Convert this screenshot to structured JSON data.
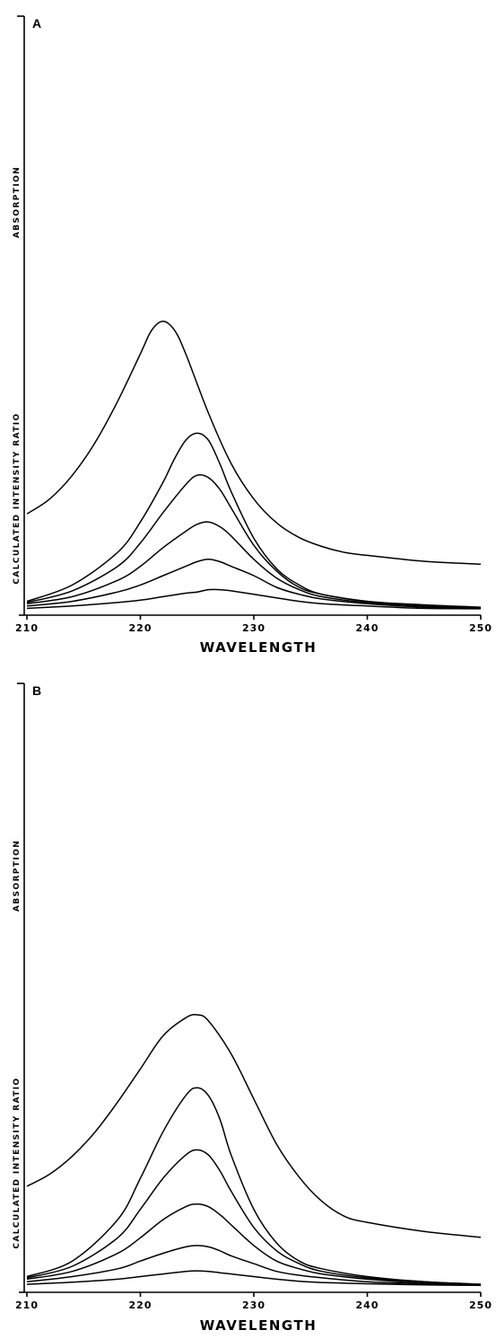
{
  "chart_data": [
    {
      "type": "line",
      "panel_label": "A",
      "xlabel": "WAVELENGTH",
      "ylabels": [
        "ABSORPTION",
        "CALCULATED INTENSITY RATIO"
      ],
      "xlim": [
        210,
        250
      ],
      "xticks": [
        210,
        220,
        230,
        240,
        250
      ],
      "xtick_labels": [
        "210",
        "220",
        "230",
        "240",
        "250"
      ],
      "series": [
        {
          "group": "absorption",
          "values": [
            [
              210,
              0.26
            ],
            [
              212,
              0.31
            ],
            [
              214,
              0.39
            ],
            [
              216,
              0.5
            ],
            [
              218,
              0.64
            ],
            [
              220,
              0.8
            ],
            [
              221,
              0.88
            ],
            [
              222,
              0.91
            ],
            [
              223,
              0.88
            ],
            [
              224,
              0.8
            ],
            [
              226,
              0.6
            ],
            [
              228,
              0.43
            ],
            [
              230,
              0.31
            ],
            [
              232,
              0.23
            ],
            [
              234,
              0.18
            ],
            [
              236,
              0.15
            ],
            [
              238,
              0.13
            ],
            [
              240,
              0.12
            ],
            [
              245,
              0.1
            ],
            [
              250,
              0.09
            ]
          ]
        },
        {
          "group": "intensity_ratio",
          "values": [
            [
              210,
              0.04
            ],
            [
              214,
              0.11
            ],
            [
              218,
              0.25
            ],
            [
              220,
              0.38
            ],
            [
              222,
              0.55
            ],
            [
              223,
              0.65
            ],
            [
              224,
              0.73
            ],
            [
              225,
              0.76
            ],
            [
              226,
              0.73
            ],
            [
              227,
              0.63
            ],
            [
              228,
              0.51
            ],
            [
              230,
              0.31
            ],
            [
              232,
              0.18
            ],
            [
              234,
              0.11
            ],
            [
              236,
              0.07
            ],
            [
              240,
              0.04
            ],
            [
              245,
              0.025
            ],
            [
              250,
              0.015
            ]
          ]
        },
        {
          "group": "intensity_ratio",
          "values": [
            [
              210,
              0.035
            ],
            [
              214,
              0.085
            ],
            [
              218,
              0.19
            ],
            [
              220,
              0.29
            ],
            [
              222,
              0.42
            ],
            [
              224,
              0.54
            ],
            [
              225,
              0.58
            ],
            [
              226,
              0.57
            ],
            [
              227,
              0.52
            ],
            [
              228,
              0.44
            ],
            [
              230,
              0.28
            ],
            [
              232,
              0.17
            ],
            [
              234,
              0.1
            ],
            [
              236,
              0.07
            ],
            [
              240,
              0.04
            ],
            [
              245,
              0.02
            ],
            [
              250,
              0.01
            ]
          ]
        },
        {
          "group": "intensity_ratio",
          "values": [
            [
              210,
              0.03
            ],
            [
              214,
              0.06
            ],
            [
              218,
              0.13
            ],
            [
              220,
              0.19
            ],
            [
              222,
              0.27
            ],
            [
              224,
              0.34
            ],
            [
              225,
              0.37
            ],
            [
              226,
              0.38
            ],
            [
              227,
              0.36
            ],
            [
              228,
              0.32
            ],
            [
              230,
              0.22
            ],
            [
              232,
              0.14
            ],
            [
              234,
              0.09
            ],
            [
              236,
              0.06
            ],
            [
              240,
              0.035
            ],
            [
              245,
              0.02
            ],
            [
              250,
              0.01
            ]
          ]
        },
        {
          "group": "intensity_ratio",
          "values": [
            [
              210,
              0.02
            ],
            [
              214,
              0.04
            ],
            [
              218,
              0.08
            ],
            [
              220,
              0.11
            ],
            [
              222,
              0.15
            ],
            [
              224,
              0.19
            ],
            [
              225,
              0.21
            ],
            [
              226,
              0.22
            ],
            [
              227,
              0.21
            ],
            [
              228,
              0.19
            ],
            [
              230,
              0.15
            ],
            [
              232,
              0.1
            ],
            [
              234,
              0.07
            ],
            [
              236,
              0.05
            ],
            [
              240,
              0.03
            ],
            [
              245,
              0.015
            ],
            [
              250,
              0.01
            ]
          ]
        },
        {
          "group": "intensity_ratio",
          "values": [
            [
              210,
              0.01
            ],
            [
              214,
              0.02
            ],
            [
              218,
              0.035
            ],
            [
              220,
              0.045
            ],
            [
              222,
              0.06
            ],
            [
              224,
              0.075
            ],
            [
              225,
              0.08
            ],
            [
              226,
              0.09
            ],
            [
              227,
              0.09
            ],
            [
              228,
              0.085
            ],
            [
              230,
              0.07
            ],
            [
              232,
              0.055
            ],
            [
              234,
              0.04
            ],
            [
              236,
              0.03
            ],
            [
              240,
              0.02
            ],
            [
              245,
              0.01
            ],
            [
              250,
              0.008
            ]
          ]
        }
      ]
    },
    {
      "type": "line",
      "panel_label": "B",
      "xlabel": "WAVELENGTH",
      "ylabels": [
        "ABSORPTION",
        "CALCULATED INTENSITY RATIO"
      ],
      "xlim": [
        210,
        250
      ],
      "xticks": [
        210,
        220,
        230,
        240,
        250
      ],
      "xtick_labels": [
        "210",
        "220",
        "230",
        "240",
        "250"
      ],
      "series": [
        {
          "group": "absorption",
          "values": [
            [
              210,
              0.26
            ],
            [
              212,
              0.3
            ],
            [
              214,
              0.36
            ],
            [
              216,
              0.44
            ],
            [
              218,
              0.54
            ],
            [
              220,
              0.65
            ],
            [
              222,
              0.76
            ],
            [
              224,
              0.82
            ],
            [
              225,
              0.83
            ],
            [
              226,
              0.81
            ],
            [
              228,
              0.7
            ],
            [
              230,
              0.55
            ],
            [
              232,
              0.4
            ],
            [
              234,
              0.29
            ],
            [
              236,
              0.21
            ],
            [
              238,
              0.16
            ],
            [
              240,
              0.14
            ],
            [
              245,
              0.11
            ],
            [
              250,
              0.09
            ]
          ]
        },
        {
          "group": "intensity_ratio",
          "values": [
            [
              210,
              0.04
            ],
            [
              214,
              0.1
            ],
            [
              218,
              0.26
            ],
            [
              220,
              0.42
            ],
            [
              222,
              0.6
            ],
            [
              224,
              0.74
            ],
            [
              225,
              0.77
            ],
            [
              226,
              0.74
            ],
            [
              227,
              0.65
            ],
            [
              228,
              0.51
            ],
            [
              230,
              0.3
            ],
            [
              232,
              0.17
            ],
            [
              234,
              0.1
            ],
            [
              236,
              0.07
            ],
            [
              240,
              0.04
            ],
            [
              245,
              0.02
            ],
            [
              250,
              0.01
            ]
          ]
        },
        {
          "group": "intensity_ratio",
          "values": [
            [
              210,
              0.035
            ],
            [
              214,
              0.08
            ],
            [
              218,
              0.19
            ],
            [
              220,
              0.3
            ],
            [
              222,
              0.42
            ],
            [
              224,
              0.51
            ],
            [
              225,
              0.53
            ],
            [
              226,
              0.51
            ],
            [
              227,
              0.45
            ],
            [
              228,
              0.37
            ],
            [
              230,
              0.23
            ],
            [
              232,
              0.14
            ],
            [
              234,
              0.09
            ],
            [
              236,
              0.06
            ],
            [
              240,
              0.035
            ],
            [
              245,
              0.02
            ],
            [
              250,
              0.01
            ]
          ]
        },
        {
          "group": "intensity_ratio",
          "values": [
            [
              210,
              0.03
            ],
            [
              214,
              0.06
            ],
            [
              218,
              0.13
            ],
            [
              220,
              0.19
            ],
            [
              222,
              0.26
            ],
            [
              224,
              0.31
            ],
            [
              225,
              0.32
            ],
            [
              226,
              0.31
            ],
            [
              227,
              0.28
            ],
            [
              228,
              0.24
            ],
            [
              230,
              0.16
            ],
            [
              232,
              0.1
            ],
            [
              234,
              0.07
            ],
            [
              236,
              0.05
            ],
            [
              240,
              0.03
            ],
            [
              245,
              0.015
            ],
            [
              250,
              0.01
            ]
          ]
        },
        {
          "group": "intensity_ratio",
          "values": [
            [
              210,
              0.02
            ],
            [
              214,
              0.04
            ],
            [
              218,
              0.07
            ],
            [
              220,
              0.1
            ],
            [
              222,
              0.13
            ],
            [
              224,
              0.155
            ],
            [
              225,
              0.16
            ],
            [
              226,
              0.155
            ],
            [
              227,
              0.14
            ],
            [
              228,
              0.12
            ],
            [
              230,
              0.09
            ],
            [
              232,
              0.06
            ],
            [
              234,
              0.045
            ],
            [
              236,
              0.035
            ],
            [
              240,
              0.02
            ],
            [
              245,
              0.012
            ],
            [
              250,
              0.008
            ]
          ]
        },
        {
          "group": "intensity_ratio",
          "values": [
            [
              210,
              0.01
            ],
            [
              214,
              0.018
            ],
            [
              218,
              0.03
            ],
            [
              220,
              0.04
            ],
            [
              222,
              0.05
            ],
            [
              224,
              0.06
            ],
            [
              225,
              0.062
            ],
            [
              226,
              0.06
            ],
            [
              227,
              0.055
            ],
            [
              228,
              0.05
            ],
            [
              230,
              0.04
            ],
            [
              232,
              0.03
            ],
            [
              234,
              0.022
            ],
            [
              236,
              0.017
            ],
            [
              240,
              0.012
            ],
            [
              245,
              0.008
            ],
            [
              250,
              0.006
            ]
          ]
        }
      ]
    }
  ]
}
